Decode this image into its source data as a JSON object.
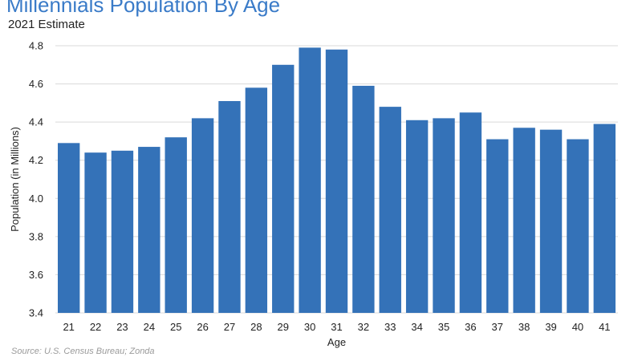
{
  "chart_data": {
    "type": "bar",
    "title": "Millennials Population By Age",
    "subtitle": "2021 Estimate",
    "xlabel": "Age",
    "ylabel": "Population (in Millions)",
    "source": "Source: U.S. Census Bureau; Zonda",
    "categories": [
      "21",
      "22",
      "23",
      "24",
      "25",
      "26",
      "27",
      "28",
      "29",
      "30",
      "31",
      "32",
      "33",
      "34",
      "35",
      "36",
      "37",
      "38",
      "39",
      "40",
      "41"
    ],
    "values": [
      4.29,
      4.24,
      4.25,
      4.27,
      4.32,
      4.42,
      4.51,
      4.58,
      4.7,
      4.79,
      4.78,
      4.59,
      4.48,
      4.41,
      4.42,
      4.45,
      4.31,
      4.37,
      4.36,
      4.31,
      4.39
    ],
    "ylim": [
      3.4,
      4.8
    ],
    "yticks": [
      "3.4",
      "3.6",
      "3.8",
      "4.0",
      "4.2",
      "4.4",
      "4.6",
      "4.8"
    ],
    "grid": true,
    "bar_color": "#3472b8",
    "grid_color": "#d9d9d9"
  }
}
